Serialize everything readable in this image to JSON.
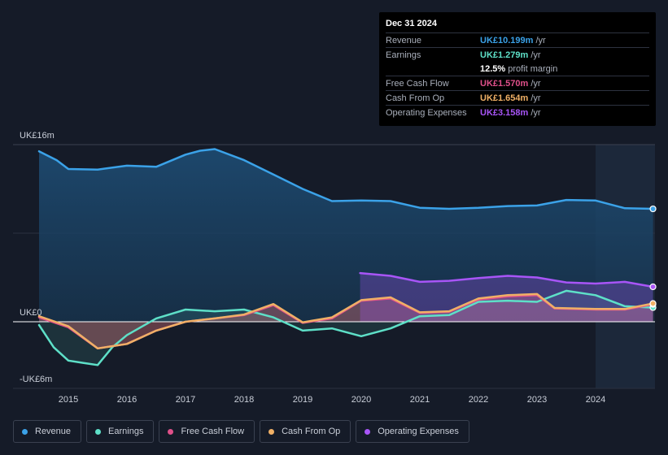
{
  "tooltip": {
    "date": "Dec 31 2024",
    "rows": [
      {
        "label": "Revenue",
        "value": "UK£10.199m",
        "unit": "/yr",
        "color": "#3ba2e8"
      },
      {
        "label": "Earnings",
        "value": "UK£1.279m",
        "unit": "/yr",
        "color": "#5ee0c8"
      },
      {
        "label": "",
        "value": "12.5%",
        "unit": "profit margin",
        "color": "#ffffff"
      },
      {
        "label": "Free Cash Flow",
        "value": "UK£1.570m",
        "unit": "/yr",
        "color": "#e0508a"
      },
      {
        "label": "Cash From Op",
        "value": "UK£1.654m",
        "unit": "/yr",
        "color": "#f0b066"
      },
      {
        "label": "Operating Expenses",
        "value": "UK£3.158m",
        "unit": "/yr",
        "color": "#a855f7"
      }
    ]
  },
  "legend": [
    {
      "label": "Revenue",
      "color": "#3ba2e8"
    },
    {
      "label": "Earnings",
      "color": "#5ee0c8"
    },
    {
      "label": "Free Cash Flow",
      "color": "#e0508a"
    },
    {
      "label": "Cash From Op",
      "color": "#f0b066"
    },
    {
      "label": "Operating Expenses",
      "color": "#a855f7"
    }
  ],
  "chart_data": {
    "type": "line",
    "title": "",
    "xlabel": "",
    "ylabel": "",
    "ylim": [
      -6,
      16
    ],
    "xlim": [
      2014.5,
      2025.0
    ],
    "highlight_start": 2024.0,
    "y_tick_labels": [
      {
        "value": 16,
        "label": "UK£16m"
      },
      {
        "value": 0,
        "label": "UK£0"
      },
      {
        "value": -6,
        "label": "-UK£6m"
      }
    ],
    "x_ticks": [
      "2015",
      "2016",
      "2017",
      "2018",
      "2019",
      "2020",
      "2021",
      "2022",
      "2023",
      "2024"
    ],
    "series": [
      {
        "name": "Revenue",
        "color": "#3ba2e8",
        "points": [
          [
            2014.5,
            15.4
          ],
          [
            2014.8,
            14.6
          ],
          [
            2015.0,
            13.8
          ],
          [
            2015.5,
            13.75
          ],
          [
            2016.0,
            14.1
          ],
          [
            2016.5,
            14.0
          ],
          [
            2017.0,
            15.1
          ],
          [
            2017.25,
            15.45
          ],
          [
            2017.5,
            15.6
          ],
          [
            2018.0,
            14.6
          ],
          [
            2018.5,
            13.3
          ],
          [
            2019.0,
            12.0
          ],
          [
            2019.5,
            10.9
          ],
          [
            2020.0,
            10.95
          ],
          [
            2020.5,
            10.9
          ],
          [
            2021.0,
            10.3
          ],
          [
            2021.5,
            10.2
          ],
          [
            2022.0,
            10.3
          ],
          [
            2022.5,
            10.45
          ],
          [
            2023.0,
            10.5
          ],
          [
            2023.5,
            11.0
          ],
          [
            2024.0,
            10.95
          ],
          [
            2024.5,
            10.25
          ],
          [
            2024.98,
            10.199
          ]
        ]
      },
      {
        "name": "Earnings",
        "color": "#5ee0c8",
        "points": [
          [
            2014.5,
            -0.3
          ],
          [
            2014.75,
            -2.3
          ],
          [
            2015.0,
            -3.5
          ],
          [
            2015.25,
            -3.7
          ],
          [
            2015.5,
            -3.9
          ],
          [
            2015.75,
            -2.3
          ],
          [
            2016.0,
            -1.2
          ],
          [
            2016.5,
            0.3
          ],
          [
            2017.0,
            1.1
          ],
          [
            2017.5,
            0.95
          ],
          [
            2018.0,
            1.1
          ],
          [
            2018.5,
            0.4
          ],
          [
            2019.0,
            -0.8
          ],
          [
            2019.5,
            -0.6
          ],
          [
            2020.0,
            -1.3
          ],
          [
            2020.5,
            -0.6
          ],
          [
            2021.0,
            0.5
          ],
          [
            2021.5,
            0.6
          ],
          [
            2022.0,
            1.8
          ],
          [
            2022.5,
            1.9
          ],
          [
            2023.0,
            1.8
          ],
          [
            2023.5,
            2.8
          ],
          [
            2024.0,
            2.4
          ],
          [
            2024.5,
            1.4
          ],
          [
            2024.98,
            1.279
          ]
        ]
      },
      {
        "name": "Free Cash Flow",
        "color": "#e0508a",
        "points": [
          [
            2014.5,
            0.4
          ],
          [
            2015.0,
            -0.5
          ],
          [
            2015.5,
            -2.4
          ],
          [
            2016.0,
            -2.0
          ],
          [
            2016.5,
            -0.8
          ],
          [
            2017.0,
            0.0
          ],
          [
            2017.5,
            0.3
          ],
          [
            2018.0,
            0.6
          ],
          [
            2018.5,
            1.5
          ],
          [
            2019.0,
            -0.1
          ],
          [
            2019.5,
            0.3
          ],
          [
            2020.0,
            1.9
          ],
          [
            2020.5,
            2.1
          ],
          [
            2021.0,
            0.8
          ],
          [
            2021.5,
            0.9
          ],
          [
            2022.0,
            2.0
          ],
          [
            2022.5,
            2.3
          ],
          [
            2023.0,
            2.4
          ],
          [
            2023.3,
            1.2
          ],
          [
            2024.0,
            1.1
          ],
          [
            2024.5,
            1.1
          ],
          [
            2024.98,
            1.57
          ]
        ]
      },
      {
        "name": "Cash From Op",
        "color": "#f0b066",
        "points": [
          [
            2014.5,
            0.5
          ],
          [
            2015.0,
            -0.4
          ],
          [
            2015.5,
            -2.4
          ],
          [
            2016.0,
            -2.0
          ],
          [
            2016.5,
            -0.8
          ],
          [
            2017.0,
            0.0
          ],
          [
            2017.5,
            0.3
          ],
          [
            2018.0,
            0.65
          ],
          [
            2018.5,
            1.6
          ],
          [
            2019.0,
            -0.05
          ],
          [
            2019.5,
            0.4
          ],
          [
            2020.0,
            1.95
          ],
          [
            2020.5,
            2.2
          ],
          [
            2021.0,
            0.85
          ],
          [
            2021.5,
            0.95
          ],
          [
            2022.0,
            2.1
          ],
          [
            2022.5,
            2.4
          ],
          [
            2023.0,
            2.5
          ],
          [
            2023.3,
            1.25
          ],
          [
            2024.0,
            1.15
          ],
          [
            2024.5,
            1.15
          ],
          [
            2024.98,
            1.654
          ]
        ]
      },
      {
        "name": "Operating Expenses",
        "color": "#a855f7",
        "points": [
          [
            2019.98,
            4.4
          ],
          [
            2020.5,
            4.15
          ],
          [
            2021.0,
            3.6
          ],
          [
            2021.5,
            3.7
          ],
          [
            2022.0,
            3.95
          ],
          [
            2022.5,
            4.15
          ],
          [
            2023.0,
            4.0
          ],
          [
            2023.5,
            3.55
          ],
          [
            2024.0,
            3.45
          ],
          [
            2024.5,
            3.6
          ],
          [
            2024.98,
            3.158
          ]
        ]
      }
    ]
  }
}
